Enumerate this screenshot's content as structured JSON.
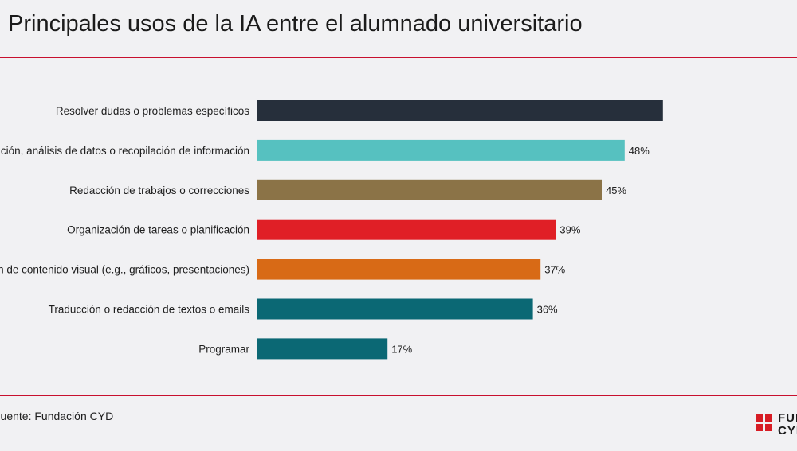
{
  "title": "Principales usos de la IA entre el alumnado universitario",
  "source": "Fuente: Fundación CYD",
  "logo": {
    "line1": "FUNDACIÓN",
    "line2": "CYD",
    "color": "#d71c24"
  },
  "colors": {
    "rule": "#c8102e",
    "label_text": "#1e1e1e"
  },
  "chart_data": {
    "type": "bar",
    "orientation": "horizontal",
    "title": "Principales usos de la IA entre el alumnado universitario",
    "xlabel": "",
    "ylabel": "",
    "unit": "%",
    "xlim": [
      0,
      53
    ],
    "grid": false,
    "legend": "none",
    "categories": [
      "Resolver dudas o problemas específicos",
      "Investigación, análisis de datos o recopilación de información",
      "Redacción de trabajos o correcciones",
      "Organización de tareas o planificación",
      "Creación de contenido visual (e.g., gráficos, presentaciones)",
      "Traducción o redacción de textos o emails",
      "Programar"
    ],
    "values": [
      53,
      48,
      45,
      39,
      37,
      36,
      17
    ],
    "value_labels": [
      "",
      "48%",
      "45%",
      "39%",
      "37%",
      "36%",
      "17%"
    ],
    "colors": [
      "#262f3b",
      "#56c1c0",
      "#8b7347",
      "#e01f26",
      "#d86a16",
      "#0b6874",
      "#0b6874"
    ]
  }
}
